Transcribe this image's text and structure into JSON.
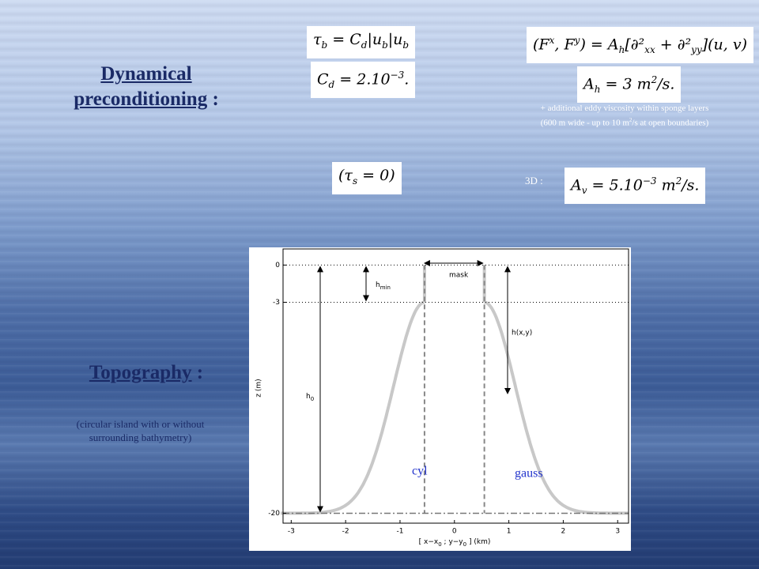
{
  "left": {
    "title": "Dynamical preconditioning",
    "title_suffix": " :",
    "topography": "Topography",
    "topography_suffix": " :",
    "caption": "(circular island with or without surrounding bathymetry)"
  },
  "equations": {
    "bottom_stress": [
      "τ",
      "b",
      " = C",
      "d",
      "|u",
      "b",
      "|u",
      "b"
    ],
    "drag": [
      "C",
      "d",
      " = 2.10",
      "−3",
      "."
    ],
    "horizontal_mixing": [
      "(F",
      "x",
      ", F",
      "y",
      ") = A",
      "h",
      "[∂²",
      "xx",
      " + ∂²",
      "yy",
      "](u, v)"
    ],
    "ah": [
      "A",
      "h",
      " = 3 m",
      "2",
      "/s."
    ],
    "surface_stress": [
      "(τ",
      "s",
      " = 0)"
    ],
    "vertical_label": "3D :",
    "av": [
      "A",
      "v",
      " = 5.10",
      "−3",
      " m",
      "2",
      "/s."
    ]
  },
  "note": {
    "line1": "+ additional eddy viscosity within sponge layers",
    "line2": [
      "(600 m wide - up to 10 m",
      "2",
      "/s at open boundaries)"
    ]
  },
  "figure": {
    "xlim": [
      -3.15,
      3.2
    ],
    "ylim": [
      1.3,
      -20.8
    ],
    "xticks": [
      -3,
      -2,
      -1,
      0,
      1,
      2,
      3
    ],
    "yticks": [
      0,
      -3,
      -20
    ],
    "ylabel": "z (m)",
    "xlabel": [
      "[ x−x",
      "0",
      " ; y−y",
      "0",
      " ] (km)"
    ],
    "mask": "mask",
    "hmin": [
      "h",
      "min"
    ],
    "hxy": "h(x,y)",
    "h0": [
      "h",
      "0"
    ],
    "cyl": "cyl",
    "gauss": "gauss"
  }
}
